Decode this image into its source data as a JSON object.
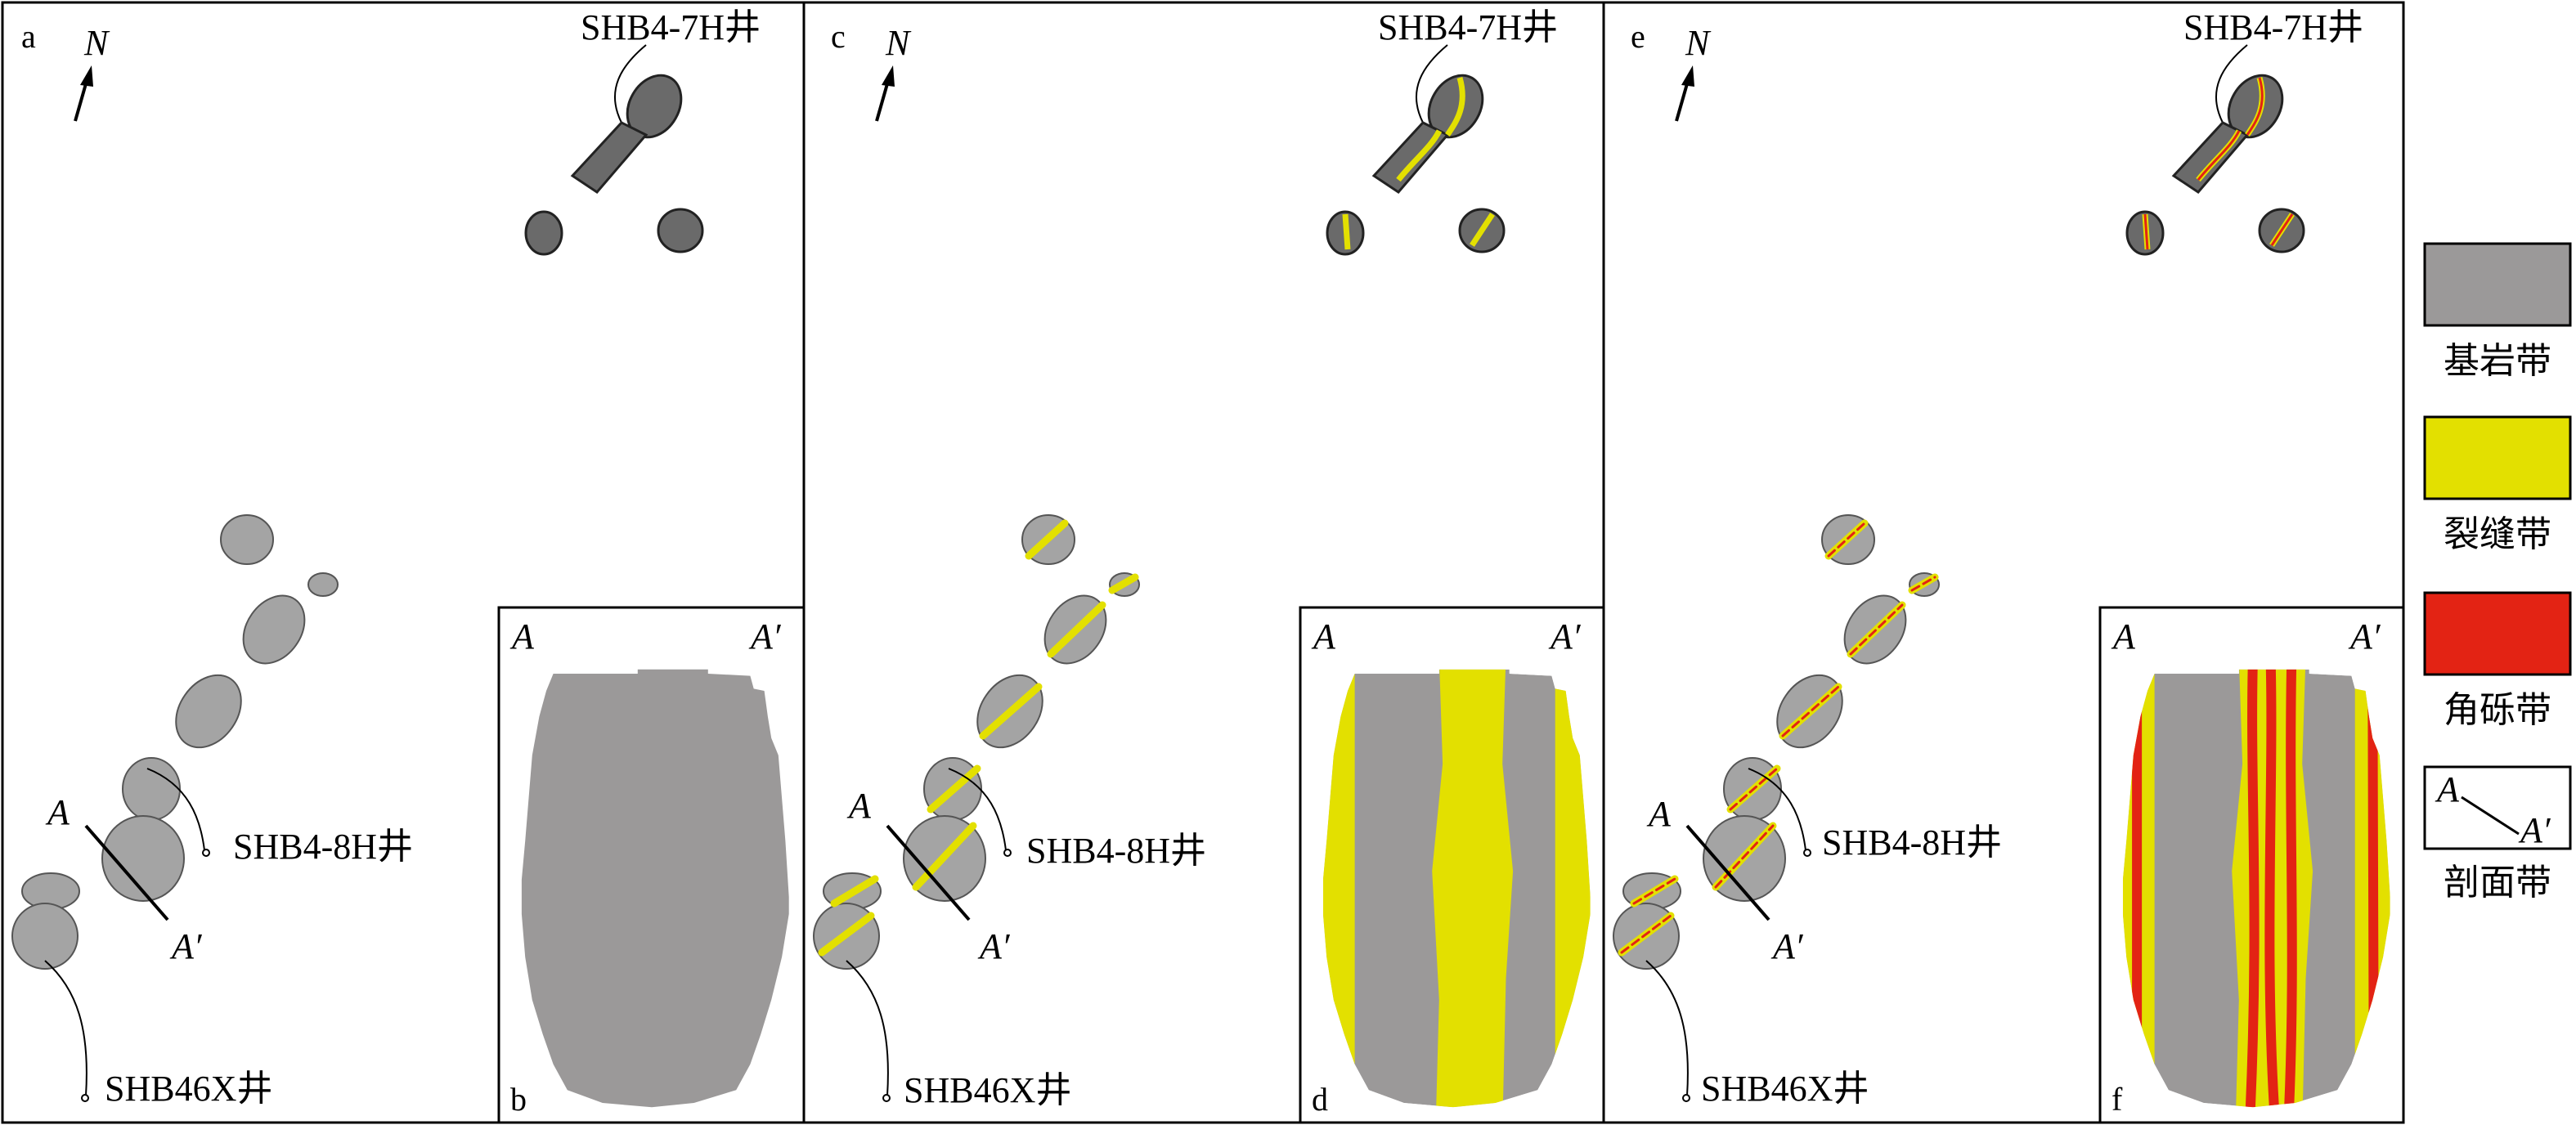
{
  "panels": {
    "a": {
      "letter": "a",
      "north": "N",
      "wells": [
        "SHB4-7H井",
        "SHB4-8H井",
        "SHB46X井"
      ],
      "section": [
        "A",
        "A′"
      ]
    },
    "b": {
      "letter": "b",
      "section": [
        "A",
        "A′"
      ]
    },
    "c": {
      "letter": "c",
      "north": "N",
      "wells": [
        "SHB4-7H井",
        "SHB4-8H井",
        "SHB46X井"
      ],
      "section": [
        "A",
        "A′"
      ]
    },
    "d": {
      "letter": "d",
      "section": [
        "A",
        "A′"
      ]
    },
    "e": {
      "letter": "e",
      "north": "N",
      "wells": [
        "SHB4-7H井",
        "SHB4-8H井",
        "SHB46X井"
      ],
      "section": [
        "A",
        "A′"
      ]
    },
    "f": {
      "letter": "f",
      "section": [
        "A",
        "A′"
      ]
    }
  },
  "legend": {
    "items": [
      {
        "label": "基岩带",
        "color": "#9b9999"
      },
      {
        "label": "裂缝带",
        "color": "#e3e000"
      },
      {
        "label": "角砾带",
        "color": "#e32314"
      },
      {
        "label": "剖面带",
        "a": "A",
        "a2": "A′"
      }
    ]
  },
  "colors": {
    "bedrock": "#9b9999",
    "bedrock_dark": "#4a4a4a",
    "fracture": "#e3e000",
    "breccia": "#e32314",
    "frame": "#000000"
  }
}
